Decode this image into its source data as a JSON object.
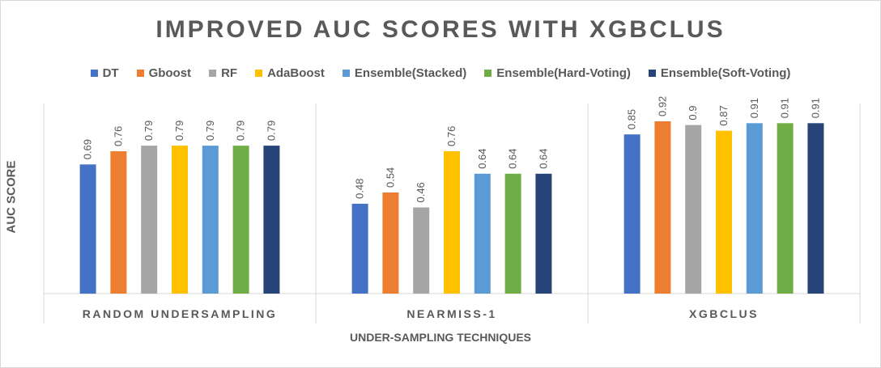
{
  "chart_data": {
    "type": "bar",
    "title": "IMPROVED AUC SCORES WITH XGBCLUS",
    "xlabel": "UNDER-SAMPLING TECHNIQUES",
    "ylabel": "AUC SCORE",
    "categories": [
      "RANDOM UNDERSAMPLING",
      "NEARMISS-1",
      "XGBCLUS"
    ],
    "ylim": [
      0,
      1
    ],
    "grid": false,
    "legend_position": "top",
    "series": [
      {
        "name": "DT",
        "color": "#4472c4",
        "values": [
          0.69,
          0.48,
          0.85
        ],
        "labels": [
          "0.69",
          "0.48",
          "0.85"
        ]
      },
      {
        "name": "Gboost",
        "color": "#ed7d31",
        "values": [
          0.76,
          0.54,
          0.92
        ],
        "labels": [
          "0.76",
          "0.54",
          "0.92"
        ]
      },
      {
        "name": "RF",
        "color": "#a5a5a5",
        "values": [
          0.79,
          0.46,
          0.9
        ],
        "labels": [
          "0.79",
          "0.46",
          "0.9"
        ]
      },
      {
        "name": "AdaBoost",
        "color": "#ffc000",
        "values": [
          0.79,
          0.76,
          0.87
        ],
        "labels": [
          "0.79",
          "0.76",
          "0.87"
        ]
      },
      {
        "name": "Ensemble(Stacked)",
        "color": "#5b9bd5",
        "values": [
          0.79,
          0.64,
          0.91
        ],
        "labels": [
          "0.79",
          "0.64",
          "0.91"
        ]
      },
      {
        "name": "Ensemble(Hard-Voting)",
        "color": "#70ad47",
        "values": [
          0.79,
          0.64,
          0.91
        ],
        "labels": [
          "0.79",
          "0.64",
          "0.91"
        ]
      },
      {
        "name": "Ensemble(Soft-Voting)",
        "color": "#264478",
        "values": [
          0.79,
          0.64,
          0.91
        ],
        "labels": [
          "0.79",
          "0.64",
          "0.91"
        ]
      }
    ]
  }
}
